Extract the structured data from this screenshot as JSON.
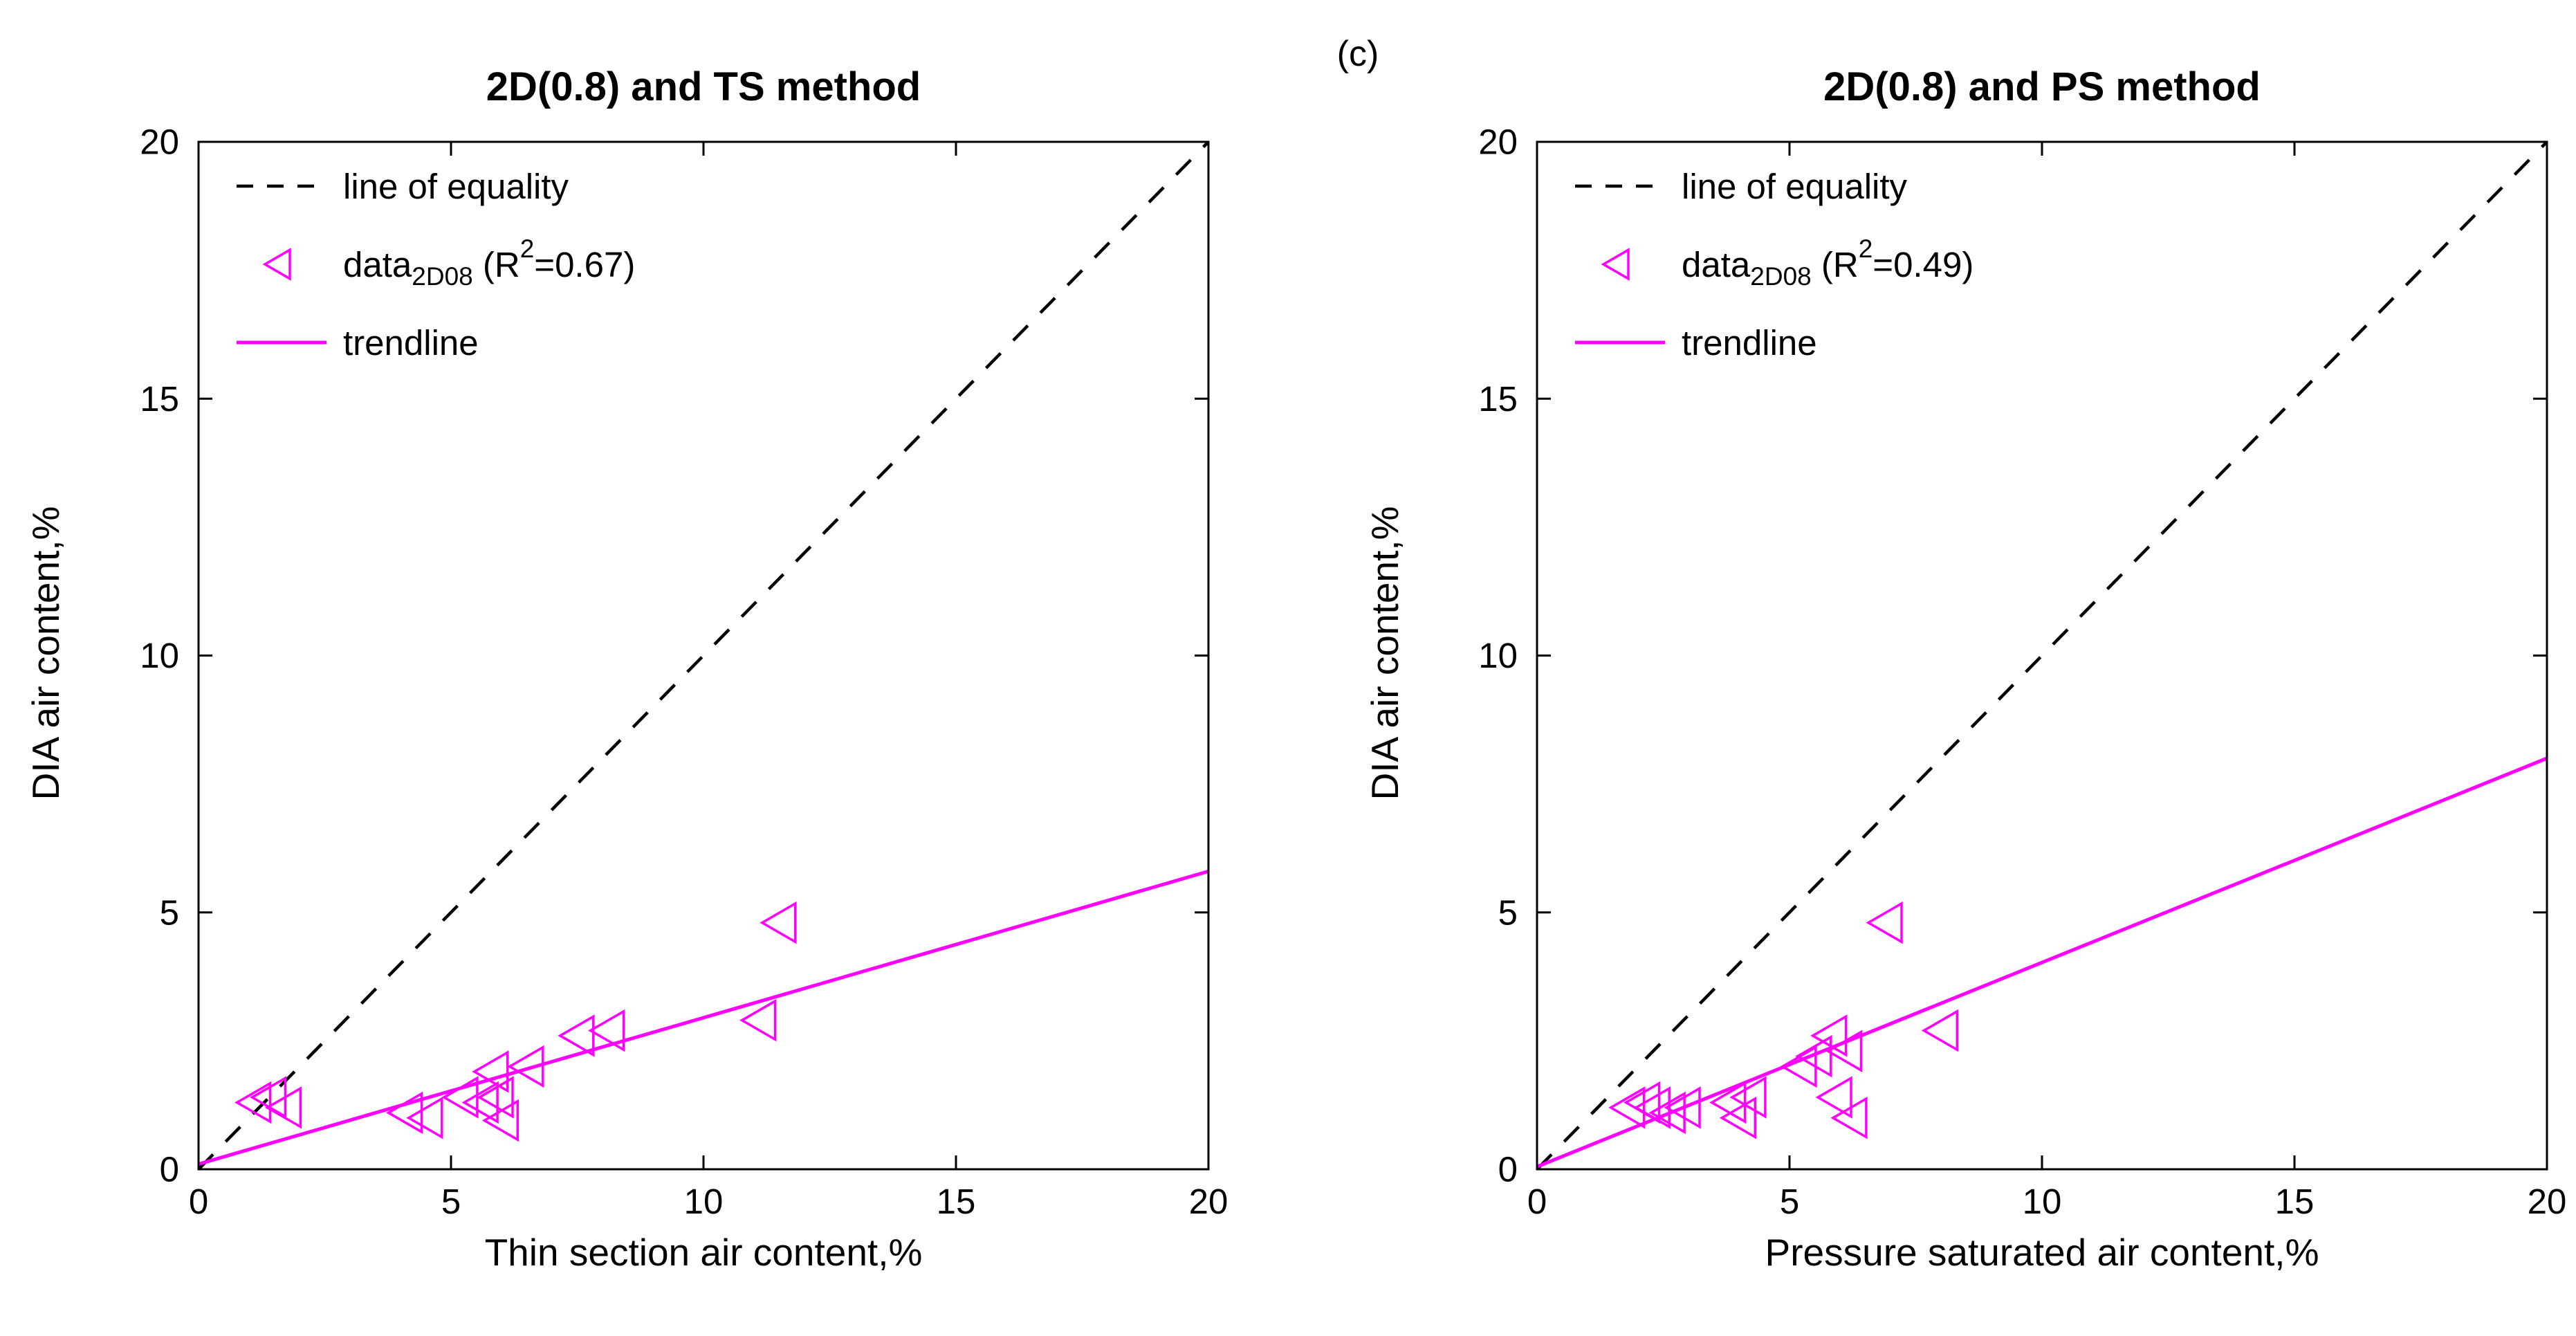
{
  "figure_label": "(c)",
  "colors": {
    "accent": "#FF00FF",
    "axis": "#000000",
    "background": "#FFFFFF"
  },
  "chart_data": [
    {
      "type": "scatter",
      "title": "2D(0.8) and TS method",
      "xlabel": "Thin section air content,%",
      "ylabel": "DIA air content,%",
      "xlim": [
        0,
        20
      ],
      "ylim": [
        0,
        20
      ],
      "xticks": [
        0,
        5,
        10,
        15,
        20
      ],
      "yticks": [
        0,
        5,
        10,
        15,
        20
      ],
      "grid": false,
      "legend_position": "top-left-inside",
      "marker": "open-left-triangle",
      "r_squared": 0.67,
      "equality_line": [
        [
          0,
          0
        ],
        [
          20,
          20
        ]
      ],
      "trendline": [
        [
          0,
          0.1
        ],
        [
          20,
          5.8
        ]
      ],
      "points": [
        [
          1.2,
          1.3
        ],
        [
          1.5,
          1.4
        ],
        [
          1.8,
          1.2
        ],
        [
          4.2,
          1.1
        ],
        [
          4.6,
          1.0
        ],
        [
          5.3,
          1.4
        ],
        [
          5.7,
          1.3
        ],
        [
          5.9,
          1.9
        ],
        [
          6.0,
          1.4
        ],
        [
          6.1,
          0.95
        ],
        [
          6.6,
          2.0
        ],
        [
          7.6,
          2.6
        ],
        [
          8.2,
          2.7
        ],
        [
          11.2,
          2.9
        ],
        [
          11.6,
          4.8
        ]
      ],
      "legend": [
        {
          "style": "dashed",
          "parts": [
            {
              "t": "line of equality"
            }
          ]
        },
        {
          "style": "marker",
          "parts": [
            {
              "t": "data"
            },
            {
              "t": "2D08",
              "pos": "sub"
            },
            {
              "t": " (R"
            },
            {
              "t": "2",
              "pos": "sup"
            },
            {
              "t": "=0.67)"
            }
          ]
        },
        {
          "style": "solid",
          "parts": [
            {
              "t": "trendline"
            }
          ]
        }
      ]
    },
    {
      "type": "scatter",
      "title": "2D(0.8) and PS method",
      "xlabel": "Pressure saturated air content,%",
      "ylabel": "DIA air content,%",
      "xlim": [
        0,
        20
      ],
      "ylim": [
        0,
        20
      ],
      "xticks": [
        0,
        5,
        10,
        15,
        20
      ],
      "yticks": [
        0,
        5,
        10,
        15,
        20
      ],
      "grid": false,
      "legend_position": "top-left-inside",
      "marker": "open-left-triangle",
      "r_squared": 0.49,
      "equality_line": [
        [
          0,
          0
        ],
        [
          20,
          20
        ]
      ],
      "trendline": [
        [
          0,
          0.05
        ],
        [
          20,
          8.0
        ]
      ],
      "points": [
        [
          1.9,
          1.2
        ],
        [
          2.2,
          1.3
        ],
        [
          2.4,
          1.2
        ],
        [
          2.7,
          1.1
        ],
        [
          3.0,
          1.2
        ],
        [
          3.9,
          1.3
        ],
        [
          4.1,
          1.0
        ],
        [
          4.3,
          1.4
        ],
        [
          5.3,
          2.0
        ],
        [
          5.6,
          2.2
        ],
        [
          5.9,
          2.6
        ],
        [
          6.0,
          1.4
        ],
        [
          6.2,
          2.3
        ],
        [
          6.3,
          1.0
        ],
        [
          7.0,
          4.8
        ],
        [
          8.1,
          2.7
        ]
      ],
      "legend": [
        {
          "style": "dashed",
          "parts": [
            {
              "t": "line of equality"
            }
          ]
        },
        {
          "style": "marker",
          "parts": [
            {
              "t": "data"
            },
            {
              "t": "2D08",
              "pos": "sub"
            },
            {
              "t": " (R"
            },
            {
              "t": "2",
              "pos": "sup"
            },
            {
              "t": "=0.49)"
            }
          ]
        },
        {
          "style": "solid",
          "parts": [
            {
              "t": "trendline"
            }
          ]
        }
      ]
    }
  ]
}
